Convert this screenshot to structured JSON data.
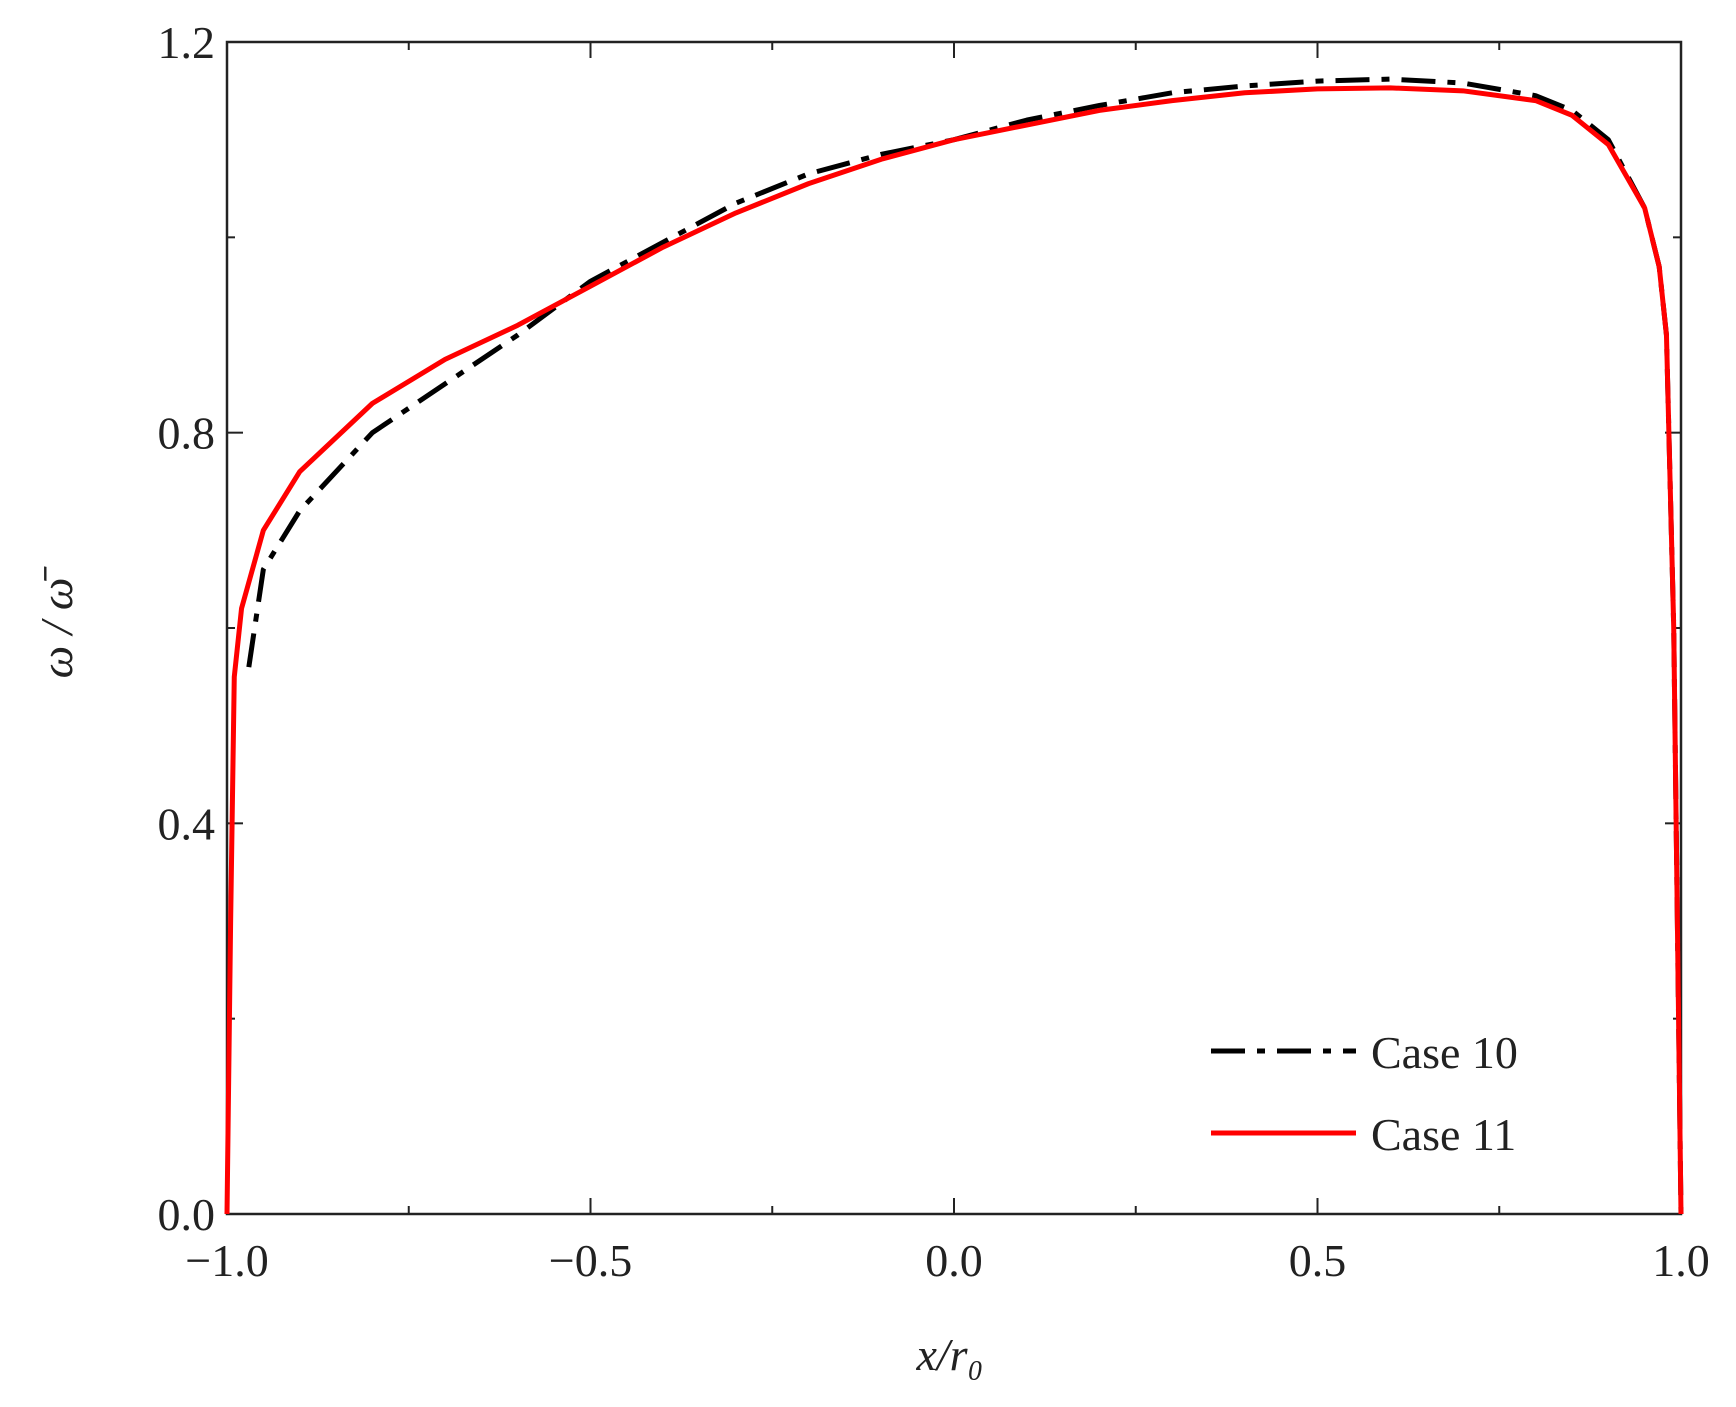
{
  "chart_data": {
    "type": "line",
    "xlabel": "x/r₀",
    "ylabel": "ω / ω̄",
    "xlim": [
      -1.0,
      1.0
    ],
    "ylim": [
      0.0,
      1.2
    ],
    "xticks": [
      {
        "value": -1.0,
        "label": "−1.0"
      },
      {
        "value": -0.5,
        "label": "−0.5"
      },
      {
        "value": 0.0,
        "label": "0.0"
      },
      {
        "value": 0.5,
        "label": "0.5"
      },
      {
        "value": 1.0,
        "label": "1.0"
      }
    ],
    "yticks": [
      {
        "value": 0.0,
        "label": "0.0"
      },
      {
        "value": 0.4,
        "label": "0.4"
      },
      {
        "value": 0.8,
        "label": "0.8"
      },
      {
        "value": 1.2,
        "label": "1.2"
      }
    ],
    "xminorticks": [
      -0.75,
      -0.25,
      0.25,
      0.75
    ],
    "yminorticks": [
      0.2,
      0.6,
      1.0
    ],
    "legend": "lower right",
    "series": [
      {
        "name": "Case 10",
        "color": "#000000",
        "dash": "dash-dot",
        "x": [
          -0.97,
          -0.95,
          -0.9,
          -0.8,
          -0.7,
          -0.6,
          -0.5,
          -0.4,
          -0.3,
          -0.2,
          -0.1,
          0.0,
          0.1,
          0.2,
          0.3,
          0.4,
          0.5,
          0.6,
          0.7,
          0.8,
          0.85,
          0.9,
          0.95,
          0.97,
          0.98,
          0.99,
          1.0
        ],
        "values": [
          0.56,
          0.66,
          0.72,
          0.8,
          0.85,
          0.9,
          0.955,
          0.995,
          1.035,
          1.065,
          1.085,
          1.1,
          1.12,
          1.135,
          1.148,
          1.155,
          1.16,
          1.162,
          1.158,
          1.145,
          1.13,
          1.1,
          1.03,
          0.97,
          0.9,
          0.6,
          0.0
        ]
      },
      {
        "name": "Case 11",
        "color": "#ff0000",
        "dash": "solid",
        "x": [
          -1.0,
          -0.995,
          -0.99,
          -0.98,
          -0.95,
          -0.9,
          -0.8,
          -0.7,
          -0.6,
          -0.5,
          -0.4,
          -0.3,
          -0.2,
          -0.1,
          0.0,
          0.1,
          0.2,
          0.3,
          0.4,
          0.5,
          0.6,
          0.7,
          0.8,
          0.85,
          0.9,
          0.95,
          0.97,
          0.98,
          0.99,
          1.0
        ],
        "values": [
          0.0,
          0.3,
          0.55,
          0.62,
          0.7,
          0.76,
          0.83,
          0.875,
          0.91,
          0.95,
          0.99,
          1.025,
          1.055,
          1.08,
          1.1,
          1.115,
          1.13,
          1.14,
          1.148,
          1.152,
          1.153,
          1.15,
          1.14,
          1.125,
          1.095,
          1.03,
          0.97,
          0.9,
          0.6,
          0.0
        ]
      }
    ]
  }
}
